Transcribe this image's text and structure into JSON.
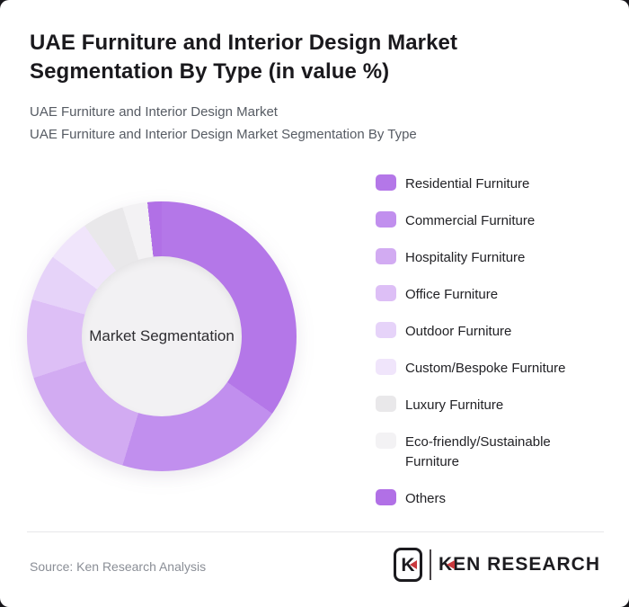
{
  "header": {
    "title": "UAE Furniture and Interior Design Market Segmentation By Type (in value %)",
    "subtitle_line1": "UAE Furniture and Interior Design Market",
    "subtitle_line2": "UAE Furniture and Interior Design Market Segmentation By Type"
  },
  "chart_data": {
    "type": "pie",
    "variant": "donut",
    "title": "UAE Furniture and Interior Design Market Segmentation By Type (in value %)",
    "unit": "value %",
    "center_label": "Market Segmentation",
    "start_angle_deg": 0,
    "direction": "clockwise",
    "legend_position": "right",
    "hole_color": "#f2f1f3",
    "segments": [
      {
        "label": "Residential Furniture",
        "value": 34.7,
        "color": "#b477e8"
      },
      {
        "label": "Commercial Furniture",
        "value": 20.0,
        "color": "#c18fee"
      },
      {
        "label": "Hospitality Furniture",
        "value": 15.3,
        "color": "#d2abf2"
      },
      {
        "label": "Office Furniture",
        "value": 9.4,
        "color": "#ddbff6"
      },
      {
        "label": "Outdoor Furniture",
        "value": 5.6,
        "color": "#e6d3f9"
      },
      {
        "label": "Custom/Bespoke Furniture",
        "value": 5.3,
        "color": "#f0e5fb"
      },
      {
        "label": "Luxury Furniture",
        "value": 5.0,
        "color": "#e9e8ea"
      },
      {
        "label": "Eco-friendly/Sustainable Furniture",
        "value": 3.0,
        "color": "#f3f2f4"
      },
      {
        "label": "Others",
        "value": 1.7,
        "color": "#b170e6"
      }
    ]
  },
  "footer": {
    "source": "Source: Ken Research Analysis",
    "logo": {
      "emblem_letter": "K",
      "wordmark": "KEN RESEARCH",
      "accent_color": "#c9393d",
      "text_color": "#1d1c20"
    }
  }
}
